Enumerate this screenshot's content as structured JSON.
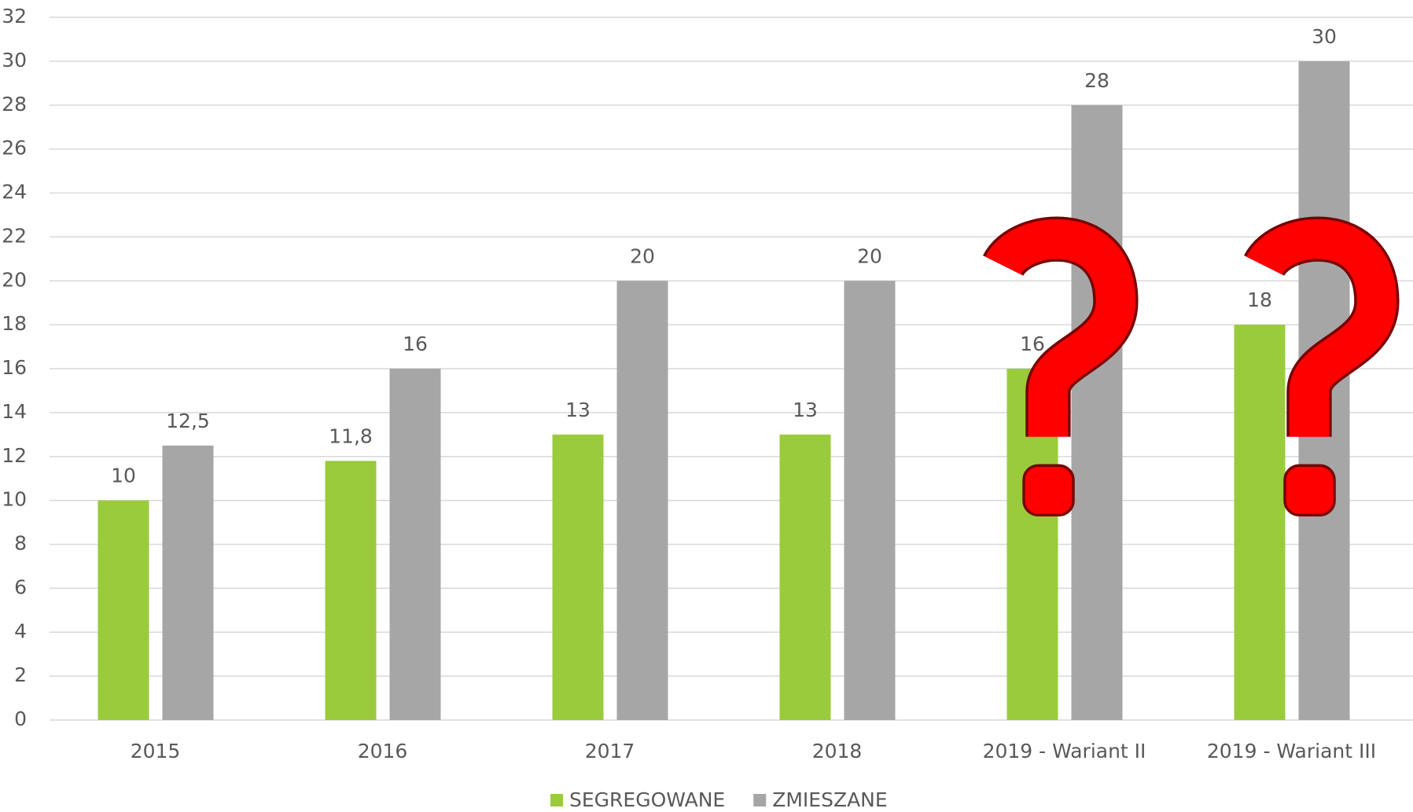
{
  "chart_data": {
    "type": "bar",
    "categories": [
      "2015",
      "2016",
      "2017",
      "2018",
      "2019 - Wariant II",
      "2019 - Wariant III"
    ],
    "series": [
      {
        "name": "SEGREGOWANE",
        "color": "#9acb3c",
        "values": [
          10,
          11.8,
          13,
          13,
          16,
          18
        ],
        "value_labels": [
          "10",
          "11,8",
          "13",
          "13",
          "16",
          "18"
        ]
      },
      {
        "name": "ZMIESZANE",
        "color": "#a6a6a6",
        "values": [
          12.5,
          16,
          20,
          20,
          28,
          30
        ],
        "value_labels": [
          "12,5",
          "16",
          "20",
          "20",
          "28",
          "30"
        ]
      }
    ],
    "ylim": [
      0,
      32
    ],
    "yticks": [
      0,
      2,
      4,
      6,
      8,
      10,
      12,
      14,
      16,
      18,
      20,
      22,
      24,
      26,
      28,
      30,
      32
    ],
    "grid": true,
    "legend": "bottom"
  }
}
